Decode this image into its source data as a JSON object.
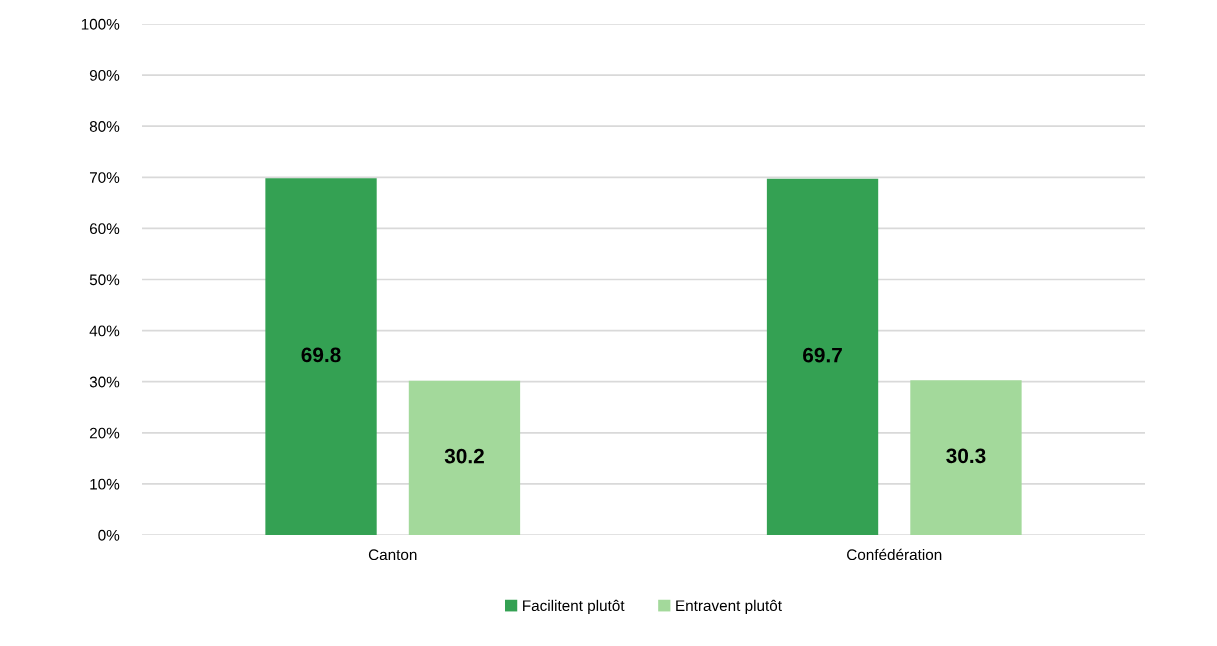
{
  "chart_data": {
    "type": "bar",
    "categories": [
      "Canton",
      "Confédération"
    ],
    "series": [
      {
        "name": "Facilitent plutôt",
        "color": "#34a153",
        "values": [
          69.8,
          69.7
        ]
      },
      {
        "name": "Entravent plutôt",
        "color": "#a3d99b",
        "values": [
          30.2,
          30.3
        ]
      }
    ],
    "ylim": [
      0,
      100
    ],
    "yticks": [
      {
        "value": 0,
        "label": "0%"
      },
      {
        "value": 10,
        "label": "10%"
      },
      {
        "value": 20,
        "label": "20%"
      },
      {
        "value": 30,
        "label": "30%"
      },
      {
        "value": 40,
        "label": "40%"
      },
      {
        "value": 50,
        "label": "50%"
      },
      {
        "value": 60,
        "label": "60%"
      },
      {
        "value": 70,
        "label": "70%"
      },
      {
        "value": 80,
        "label": "80%"
      },
      {
        "value": 90,
        "label": "90%"
      },
      {
        "value": 100,
        "label": "100%"
      }
    ],
    "grid": "y",
    "legend": "bottom",
    "data_labels": true
  }
}
